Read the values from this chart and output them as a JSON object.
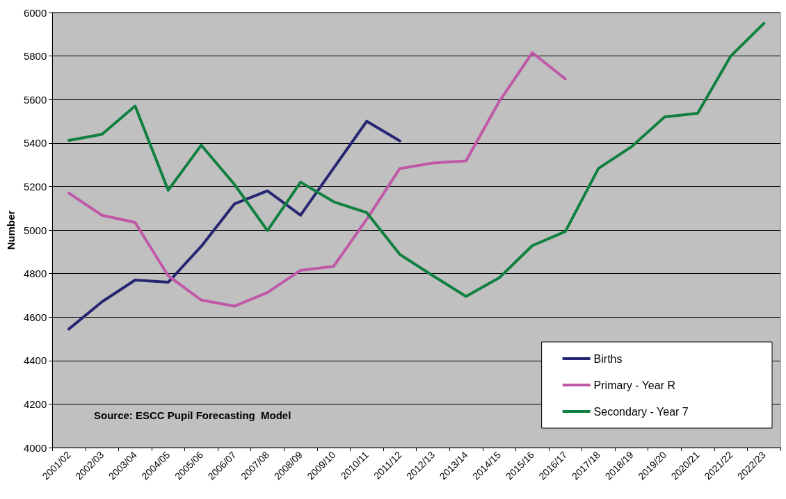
{
  "chart_data": {
    "type": "line",
    "ylabel": "Number",
    "categories": [
      "2001/02",
      "2002/03",
      "2003/04",
      "2004/05",
      "2005/06",
      "2006/07",
      "2007/08",
      "2008/09",
      "2009/10",
      "2010/11",
      "2011/12",
      "2012/13",
      "2013/14",
      "2014/15",
      "2015/16",
      "2016/17",
      "2017/18",
      "2018/19",
      "2019/20",
      "2020/21",
      "2021/22",
      "2022/23"
    ],
    "series": [
      {
        "name": "Births",
        "color": "#262673",
        "values": [
          4545,
          4670,
          4770,
          4760,
          4925,
          5120,
          5180,
          5068,
          5285,
          5500,
          5410,
          null,
          null,
          null,
          null,
          null,
          null,
          null,
          null,
          null,
          null,
          null
        ]
      },
      {
        "name": "Primary - Year R",
        "color": "#c058a8",
        "values": [
          5170,
          5068,
          5035,
          4790,
          4678,
          4650,
          4713,
          4815,
          4833,
          5050,
          5283,
          5308,
          5318,
          5590,
          5815,
          5695,
          null,
          null,
          null,
          null,
          null,
          null
        ]
      },
      {
        "name": "Secondary - Year 7",
        "color": "#108040",
        "values": [
          5412,
          5440,
          5570,
          5183,
          5390,
          5210,
          4997,
          5220,
          5130,
          5080,
          4888,
          4790,
          4695,
          4780,
          4928,
          4993,
          5283,
          5383,
          5520,
          5537,
          5800,
          5950
        ]
      }
    ],
    "ylim": [
      4000,
      6000
    ],
    "yticks": [
      4000,
      4200,
      4400,
      4600,
      4800,
      5000,
      5200,
      5400,
      5600,
      5800,
      6000
    ],
    "grid": "y",
    "legend": "bottom right",
    "marker": "none",
    "line_style": "solid",
    "annotations": [
      "Source: ESCC Pupil Forecasting  Model"
    ]
  }
}
